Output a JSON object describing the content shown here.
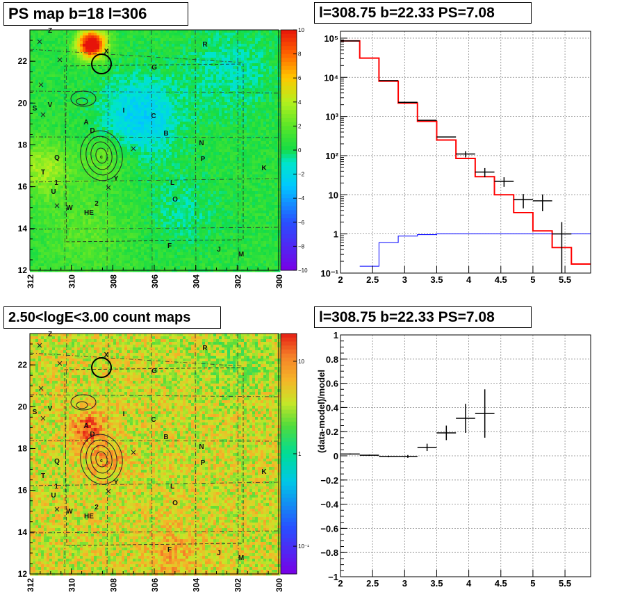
{
  "colors": {
    "ps_bg": "#22dd33",
    "cnt_bg": "#f0a020",
    "model": "#ff0000",
    "background_model": "#0000ff",
    "data": "#000000"
  },
  "panels": {
    "ps_map": {
      "title": "PS map b=18 l=306"
    },
    "spectrum": {
      "title": "l=308.75 b=22.33 PS=7.08"
    },
    "count_map": {
      "title": "2.50<logE<3.00 count maps"
    },
    "residual": {
      "title": "l=308.75 b=22.33 PS=7.08"
    }
  },
  "maps": {
    "x_ticks": [
      "312",
      "310",
      "308",
      "306",
      "304",
      "302",
      "300"
    ],
    "y_ticks": [
      "12",
      "14",
      "16",
      "18",
      "20",
      "22"
    ],
    "labels": [
      "Z",
      "R",
      "X",
      "G",
      "S",
      "V",
      "I",
      "C",
      "A",
      "D",
      "B",
      "N",
      "Q",
      "P",
      "K",
      "T",
      "1",
      "Y",
      "L",
      "U",
      "O",
      "W",
      "2",
      "HE",
      "F",
      "J",
      "M",
      "c"
    ],
    "ps_colorbar_ticks": [
      "10",
      "8",
      "6",
      "4",
      "2",
      "0",
      "−2",
      "−4",
      "−6",
      "−8",
      "−10"
    ],
    "count_colorbar_ticks": [
      "10",
      "1",
      "10⁻¹"
    ]
  },
  "chart_data": [
    {
      "type": "heatmap",
      "title": "PS map b=18 l=306",
      "xlim": [
        312,
        300
      ],
      "ylim": [
        12,
        23.5
      ],
      "zlim": [
        -10,
        10
      ],
      "x_ticks": [
        312,
        310,
        308,
        306,
        304,
        302,
        300
      ],
      "y_ticks": [
        12,
        14,
        16,
        18,
        20,
        22
      ]
    },
    {
      "type": "line",
      "title": "l=308.75 b=22.33 PS=7.08",
      "y_scale": "log",
      "xlim": [
        2,
        5.9
      ],
      "ylim": [
        0.1,
        150000
      ],
      "x_ticks": [
        2,
        2.5,
        3,
        3.5,
        4,
        4.5,
        5,
        5.5
      ],
      "y_tick_labels": [
        "10⁻¹",
        "1",
        "10",
        "10²",
        "10³",
        "10⁴",
        "10⁵"
      ],
      "grid": true,
      "series": [
        {
          "style": "step",
          "color": "#ff0000",
          "edges": [
            2,
            2.3,
            2.6,
            2.9,
            3.2,
            3.5,
            3.8,
            4.1,
            4.4,
            4.7,
            5.0,
            5.3,
            5.6,
            5.9
          ],
          "values": [
            85000,
            31000,
            8000,
            2200,
            750,
            250,
            85,
            29,
            10,
            3.5,
            1.2,
            0.45,
            0.17
          ]
        },
        {
          "style": "step",
          "color": "#0000ff",
          "edges": [
            2.3,
            2.6,
            2.9,
            3.2,
            3.5,
            5.9
          ],
          "values": [
            0.15,
            0.6,
            0.88,
            0.96,
            1.0
          ]
        },
        {
          "style": "errorbar",
          "color": "#000000",
          "x": [
            2.15,
            2.75,
            3.05,
            3.35,
            3.65,
            3.95,
            4.25,
            4.55,
            4.85,
            5.15,
            5.45
          ],
          "y": [
            85000,
            8300,
            2300,
            800,
            300,
            110,
            38,
            22,
            7.5,
            7,
            1.0
          ],
          "y_err_low": [
            0,
            0,
            0,
            0,
            0,
            20,
            10,
            6,
            3,
            3.2,
            0.92
          ],
          "y_err_high": [
            0,
            0,
            0,
            0,
            0,
            20,
            10,
            6,
            3,
            3.2,
            1.0
          ],
          "x_halfwidth": 0.15
        }
      ]
    },
    {
      "type": "heatmap",
      "title": "2.50<logE<3.00 count maps",
      "xlim": [
        312,
        300
      ],
      "ylim": [
        12,
        23.5
      ],
      "z_scale": "log",
      "x_ticks": [
        312,
        310,
        308,
        306,
        304,
        302,
        300
      ],
      "y_ticks": [
        12,
        14,
        16,
        18,
        20,
        22
      ]
    },
    {
      "type": "scatter",
      "title": "l=308.75 b=22.33 PS=7.08",
      "ylabel": "(data-model)/model",
      "xlim": [
        2,
        5.9
      ],
      "ylim": [
        -1,
        1
      ],
      "x_ticks": [
        2,
        2.5,
        3,
        3.5,
        4,
        4.5,
        5,
        5.5
      ],
      "y_ticks": [
        -1,
        -0.8,
        -0.6,
        -0.4,
        -0.2,
        0,
        0.2,
        0.4,
        0.6,
        0.8,
        1
      ],
      "y_tick_labels": [
        "−1",
        "−0.8",
        "−0.6",
        "−0.4",
        "−0.2",
        "0",
        "0.2",
        "0.4",
        "0.6",
        "0.8",
        "1"
      ],
      "grid": true,
      "x": [
        2.15,
        2.45,
        2.75,
        3.05,
        3.35,
        3.65,
        3.95,
        4.25
      ],
      "y": [
        0.015,
        0.005,
        -0.005,
        -0.005,
        0.07,
        0.19,
        0.31,
        0.35
      ],
      "y_err": [
        0.005,
        0.005,
        0.007,
        0.012,
        0.03,
        0.06,
        0.12,
        0.2
      ],
      "x_halfwidth": 0.15
    }
  ]
}
